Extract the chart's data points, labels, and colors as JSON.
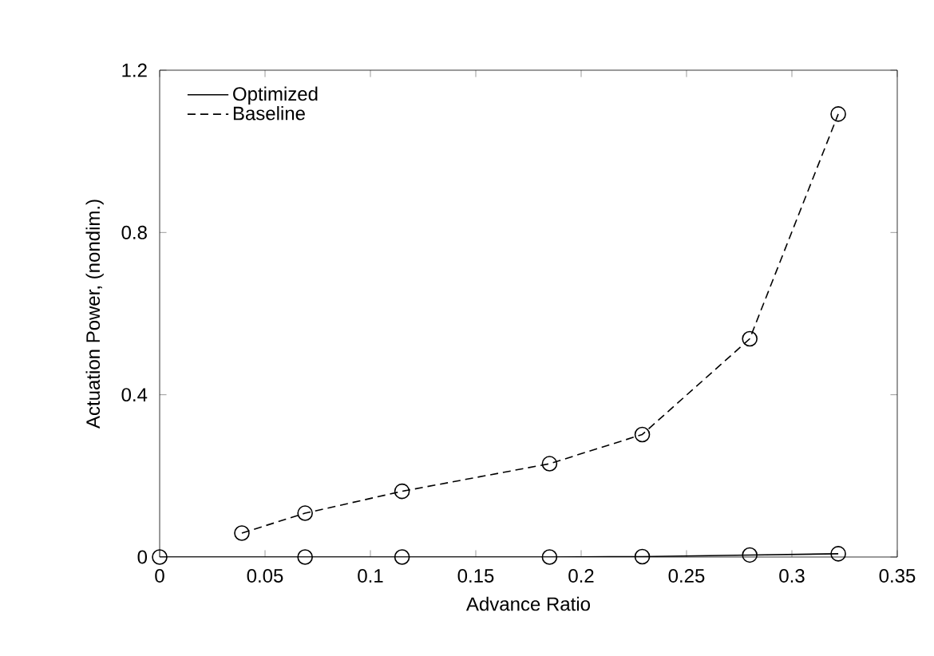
{
  "chart_data": {
    "type": "line",
    "xlabel": "Advance Ratio",
    "ylabel": "Actuation Power, (nondim.)",
    "xlim": [
      0,
      0.35
    ],
    "xticks": [
      0,
      0.05,
      0.1,
      0.15,
      0.2,
      0.25,
      0.3,
      0.35
    ],
    "ylim": [
      0,
      1.2
    ],
    "yticks": [
      0,
      0.4,
      0.8,
      1.2
    ],
    "legend": "top left",
    "marker": "circle",
    "grid": false,
    "series": [
      {
        "name": "Optimized",
        "color": "#000000",
        "line_style": "solid",
        "x": [
          0,
          0.069,
          0.115,
          0.185,
          0.229,
          0.28,
          0.322
        ],
        "values": [
          0,
          0,
          0,
          0,
          0.001,
          0.005,
          0.008
        ]
      },
      {
        "name": "Baseline",
        "color": "#000000",
        "line_style": "dashed",
        "x": [
          0.039,
          0.069,
          0.115,
          0.185,
          0.229,
          0.28,
          0.322
        ],
        "values": [
          0.059,
          0.108,
          0.162,
          0.23,
          0.302,
          0.538,
          1.092
        ]
      }
    ]
  }
}
